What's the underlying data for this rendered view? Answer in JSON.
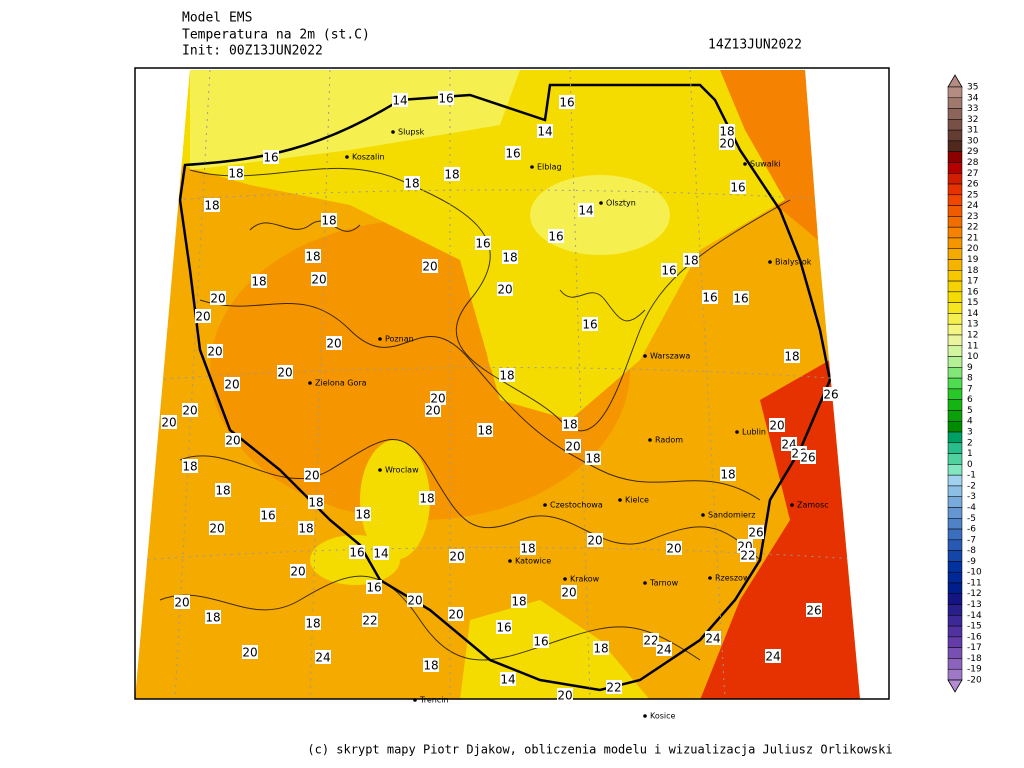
{
  "header": {
    "lines": [
      "Model EMS",
      "Temperatura na 2m (st.C)",
      "Init: 00Z13JUN2022"
    ],
    "valid_time": "14Z13JUN2022"
  },
  "map": {
    "contour_labels": [
      14,
      16,
      16,
      14,
      18,
      20,
      16,
      16,
      18,
      18,
      18,
      16,
      18,
      14,
      18,
      16,
      16,
      18,
      18,
      20,
      16,
      18,
      18,
      20,
      20,
      16,
      16,
      20,
      20,
      16,
      20,
      20,
      18,
      18,
      20,
      20,
      20,
      26,
      20,
      20,
      20,
      18,
      18,
      20,
      20,
      24,
      20,
      26,
      26,
      18,
      18,
      18,
      20,
      18,
      18,
      18,
      18,
      16,
      20,
      18,
      26,
      20,
      16,
      14,
      22,
      20,
      18,
      20,
      20,
      20,
      16,
      20,
      20,
      20,
      18,
      20,
      18,
      26,
      18,
      22,
      16,
      16,
      24,
      22,
      24,
      18,
      20,
      24,
      24,
      18,
      14,
      22,
      20
    ],
    "cities": [
      "Slupsk",
      "Koszalin",
      "Elblag",
      "Olsztyn",
      "Suwalki",
      "Bialystok",
      "Poznan",
      "Warszawa",
      "Radom",
      "Lublin",
      "Kielce",
      "Czestochowa",
      "Katowice",
      "Krakow",
      "Tarnow",
      "Rzeszow",
      "Zamosc",
      "Sandomierz",
      "Zielona Gora",
      "Wroclaw",
      "Kosice",
      "Trencin"
    ]
  },
  "colorbar": {
    "levels": [
      35,
      34,
      33,
      32,
      31,
      30,
      29,
      28,
      27,
      26,
      25,
      24,
      23,
      22,
      21,
      20,
      19,
      18,
      17,
      16,
      15,
      14,
      13,
      12,
      11,
      10,
      9,
      8,
      7,
      6,
      5,
      4,
      3,
      2,
      1,
      0,
      -1,
      -2,
      -3,
      -4,
      -5,
      -6,
      -7,
      -8,
      -9,
      -10,
      -11,
      -12,
      -13,
      -14,
      -15,
      -16,
      -17,
      -18,
      -19,
      -20
    ],
    "colors": [
      "#b48c82",
      "#a0786e",
      "#8c645a",
      "#785046",
      "#643c32",
      "#50281e",
      "#8c0000",
      "#b40000",
      "#d21e00",
      "#e63200",
      "#f04600",
      "#f05a00",
      "#f06e00",
      "#f58200",
      "#f59600",
      "#f5aa00",
      "#f5b400",
      "#f5c800",
      "#f5d200",
      "#f5dc00",
      "#f5e61e",
      "#f5f050",
      "#f5f582",
      "#ebf5a0",
      "#d2f5a0",
      "#b4f096",
      "#82e678",
      "#50dc50",
      "#28c828",
      "#14b414",
      "#0aa00a",
      "#008c00",
      "#00a064",
      "#28be8c",
      "#50d2a0",
      "#82e6be",
      "#a0d2f0",
      "#8cbee6",
      "#78aadc",
      "#6496d2",
      "#5082c8",
      "#3c6ebe",
      "#285ab4",
      "#1446aa",
      "#0032a0",
      "#002896",
      "#001e8c",
      "#141482",
      "#281e8c",
      "#3c2896",
      "#5032a0",
      "#643caa",
      "#7850b4",
      "#8c64be",
      "#a078c8",
      "#b48cd2"
    ]
  },
  "footer": "(c) skrypt mapy Piotr Djakow, obliczenia modelu i wizualizacja Juliusz Orlikowski"
}
